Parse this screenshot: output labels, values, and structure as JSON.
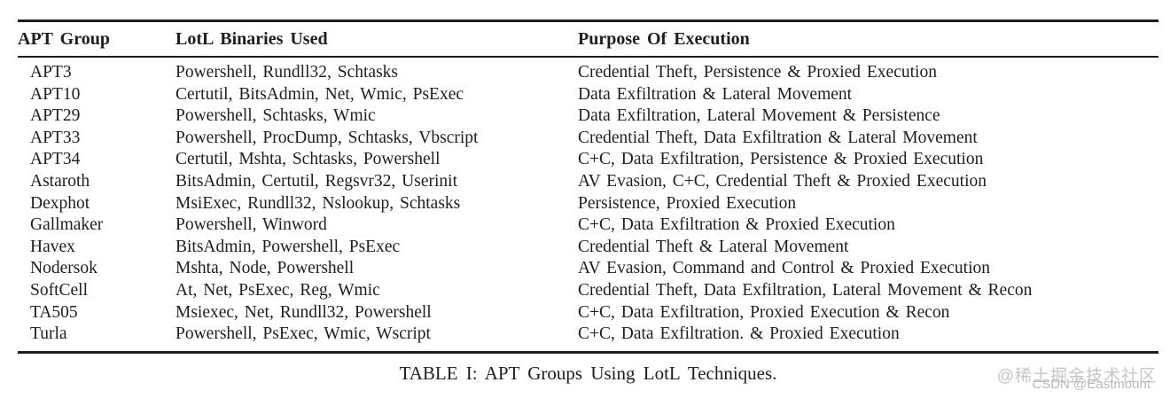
{
  "table": {
    "caption": "TABLE I: APT Groups Using LotL Techniques.",
    "columns": [
      "APT Group",
      "LotL Binaries Used",
      "Purpose Of Execution"
    ],
    "rows": [
      {
        "group": "APT3",
        "binaries": "Powershell, Rundll32, Schtasks",
        "purpose": "Credential Theft, Persistence & Proxied Execution"
      },
      {
        "group": "APT10",
        "binaries": "Certutil, BitsAdmin, Net, Wmic, PsExec",
        "purpose": "Data Exfiltration & Lateral Movement"
      },
      {
        "group": "APT29",
        "binaries": "Powershell, Schtasks, Wmic",
        "purpose": "Data Exfiltration, Lateral Movement & Persistence"
      },
      {
        "group": "APT33",
        "binaries": "Powershell, ProcDump, Schtasks, Vbscript",
        "purpose": "Credential Theft, Data Exfiltration & Lateral Movement"
      },
      {
        "group": "APT34",
        "binaries": "Certutil, Mshta, Schtasks, Powershell",
        "purpose": "C+C, Data Exfiltration, Persistence & Proxied Execution"
      },
      {
        "group": "Astaroth",
        "binaries": "BitsAdmin, Certutil, Regsvr32, Userinit",
        "purpose": "AV Evasion, C+C, Credential Theft & Proxied Execution"
      },
      {
        "group": "Dexphot",
        "binaries": "MsiExec, Rundll32, Nslookup, Schtasks",
        "purpose": "Persistence, Proxied Execution"
      },
      {
        "group": "Gallmaker",
        "binaries": "Powershell, Winword",
        "purpose": "C+C, Data Exfiltration & Proxied Execution"
      },
      {
        "group": "Havex",
        "binaries": "BitsAdmin, Powershell, PsExec",
        "purpose": "Credential Theft & Lateral Movement"
      },
      {
        "group": "Nodersok",
        "binaries": "Mshta, Node, Powershell",
        "purpose": "AV Evasion, Command and Control & Proxied Execution"
      },
      {
        "group": "SoftCell",
        "binaries": "At, Net, PsExec, Reg, Wmic",
        "purpose": "Credential Theft, Data Exfiltration, Lateral Movement & Recon"
      },
      {
        "group": "TA505",
        "binaries": "Msiexec, Net, Rundll32, Powershell",
        "purpose": "C+C, Data Exfiltration, Proxied Execution & Recon"
      },
      {
        "group": "Turla",
        "binaries": "Powershell, PsExec, Wmic, Wscript",
        "purpose": "C+C, Data Exfiltration. & Proxied Execution"
      }
    ]
  },
  "watermark": {
    "line1": "@稀土掘金技术社区",
    "line2": "CSDN @Eastmount"
  },
  "colors": {
    "text": "#1e1e1e",
    "rule": "#1e1e1e",
    "background": "#ffffff",
    "watermark": "#c6c6c6"
  }
}
